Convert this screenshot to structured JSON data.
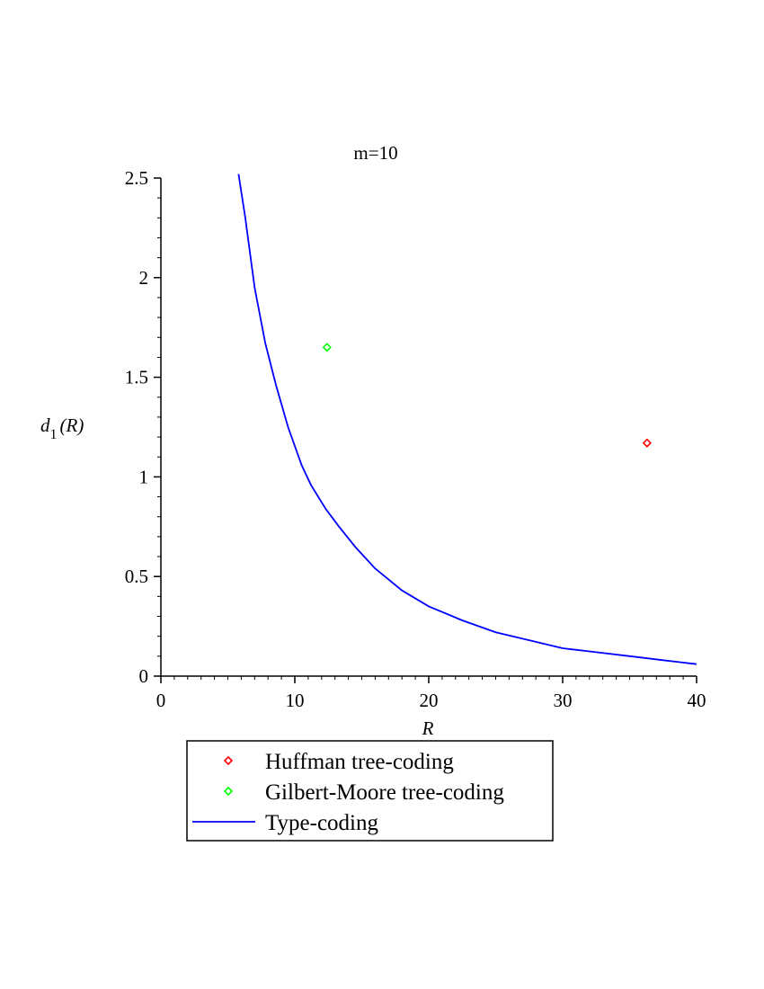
{
  "chart_data": {
    "type": "scatter",
    "title": "m=10",
    "xlabel": "R",
    "ylabel": {
      "main": "d",
      "subscript": "1",
      "argument": "(R)"
    },
    "xlim": [
      0,
      40
    ],
    "ylim": [
      0,
      2.5
    ],
    "x_ticks": [
      "0",
      "10",
      "20",
      "30",
      "40"
    ],
    "y_ticks": [
      "0",
      "0.5",
      "1",
      "1.5",
      "2",
      "2.5"
    ],
    "grid": false,
    "legend_position": "bottom",
    "series": [
      {
        "name": "Huffman tree-coding",
        "kind": "points",
        "marker": "diamond",
        "color": "#ff0000",
        "points": [
          {
            "x": 36.3,
            "y": 1.17
          }
        ]
      },
      {
        "name": "Gilbert-Moore tree-coding",
        "kind": "points",
        "marker": "diamond",
        "color": "#00ff00",
        "points": [
          {
            "x": 12.4,
            "y": 1.65
          }
        ]
      },
      {
        "name": "Type-coding",
        "kind": "line",
        "color": "#0000ff",
        "x": [
          5.8,
          6.3,
          7,
          7.8,
          8.6,
          9.5,
          10.5,
          11.2,
          12.3,
          13.3,
          14.5,
          16,
          18,
          20,
          22.5,
          25,
          27.5,
          30,
          32.5,
          35,
          37.5,
          40
        ],
        "y": [
          2.52,
          2.3,
          1.95,
          1.67,
          1.46,
          1.25,
          1.06,
          0.96,
          0.84,
          0.75,
          0.65,
          0.54,
          0.43,
          0.35,
          0.28,
          0.22,
          0.18,
          0.14,
          0.12,
          0.1,
          0.08,
          0.06
        ]
      }
    ]
  }
}
